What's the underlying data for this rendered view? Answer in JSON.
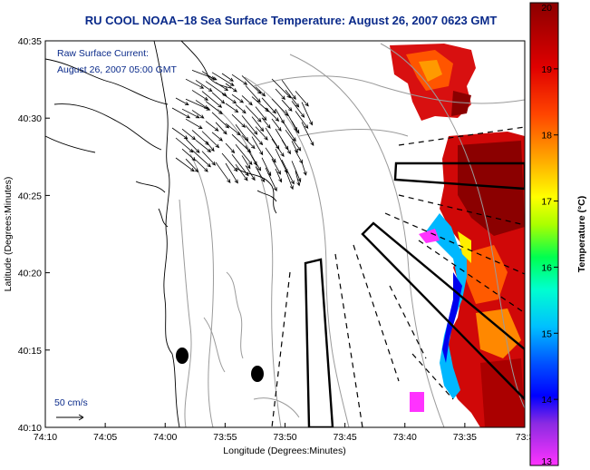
{
  "title": "RU COOL  NOAA−18  Sea Surface Temperature:  August 26, 2007 0623 GMT",
  "annotation": {
    "line1": "Raw Surface Current:",
    "line2": "August 26, 2007 05:00 GMT",
    "scale_label": "50 cm/s"
  },
  "colors": {
    "title": "#0a2a8a",
    "coast": "#000000",
    "bathymetry": "#9a9a9a",
    "colorbar_stops": [
      "#ff33ff",
      "#8c2be2",
      "#0000ff",
      "#00a0ff",
      "#00ffff",
      "#00ff66",
      "#aaff00",
      "#ffff00",
      "#ffaa00",
      "#ff4400",
      "#cc0000",
      "#8b0000"
    ]
  },
  "chart_data": {
    "type": "heatmap",
    "title": "RU COOL  NOAA−18  Sea Surface Temperature:  August 26, 2007 0623 GMT",
    "xlabel": "Longitude (Degrees:Minutes)",
    "ylabel": "Latitude (Degrees:Minutes)",
    "x_ticks": [
      "74:10",
      "74:05",
      "74:00",
      "73:55",
      "73:50",
      "73:45",
      "73:40",
      "73:35",
      "73:3"
    ],
    "y_ticks": [
      "40:35",
      "40:30",
      "40:25",
      "40:20",
      "40:15",
      "40:10"
    ],
    "xlim": [
      -74.1667,
      -73.5
    ],
    "ylim": [
      40.1667,
      40.5833
    ],
    "colorbar": {
      "label": "Temperature (°C)",
      "min": 13,
      "max": 20,
      "ticks": [
        "13",
        "14",
        "15",
        "16",
        "17",
        "18",
        "19",
        "20"
      ]
    },
    "sst_region_summary": [
      {
        "area": "northeast patch",
        "temperature_c": 19.5
      },
      {
        "area": "east band",
        "temperature_c": 19.8
      },
      {
        "area": "cold nearshore filament",
        "temperature_c": 14.5
      },
      {
        "area": "southeast small patch",
        "temperature_c": 13.2
      }
    ],
    "current_vectors_note": "Raw Surface Current field concentrated near the harbor mouth, flowing east-southeast",
    "grid": false
  }
}
